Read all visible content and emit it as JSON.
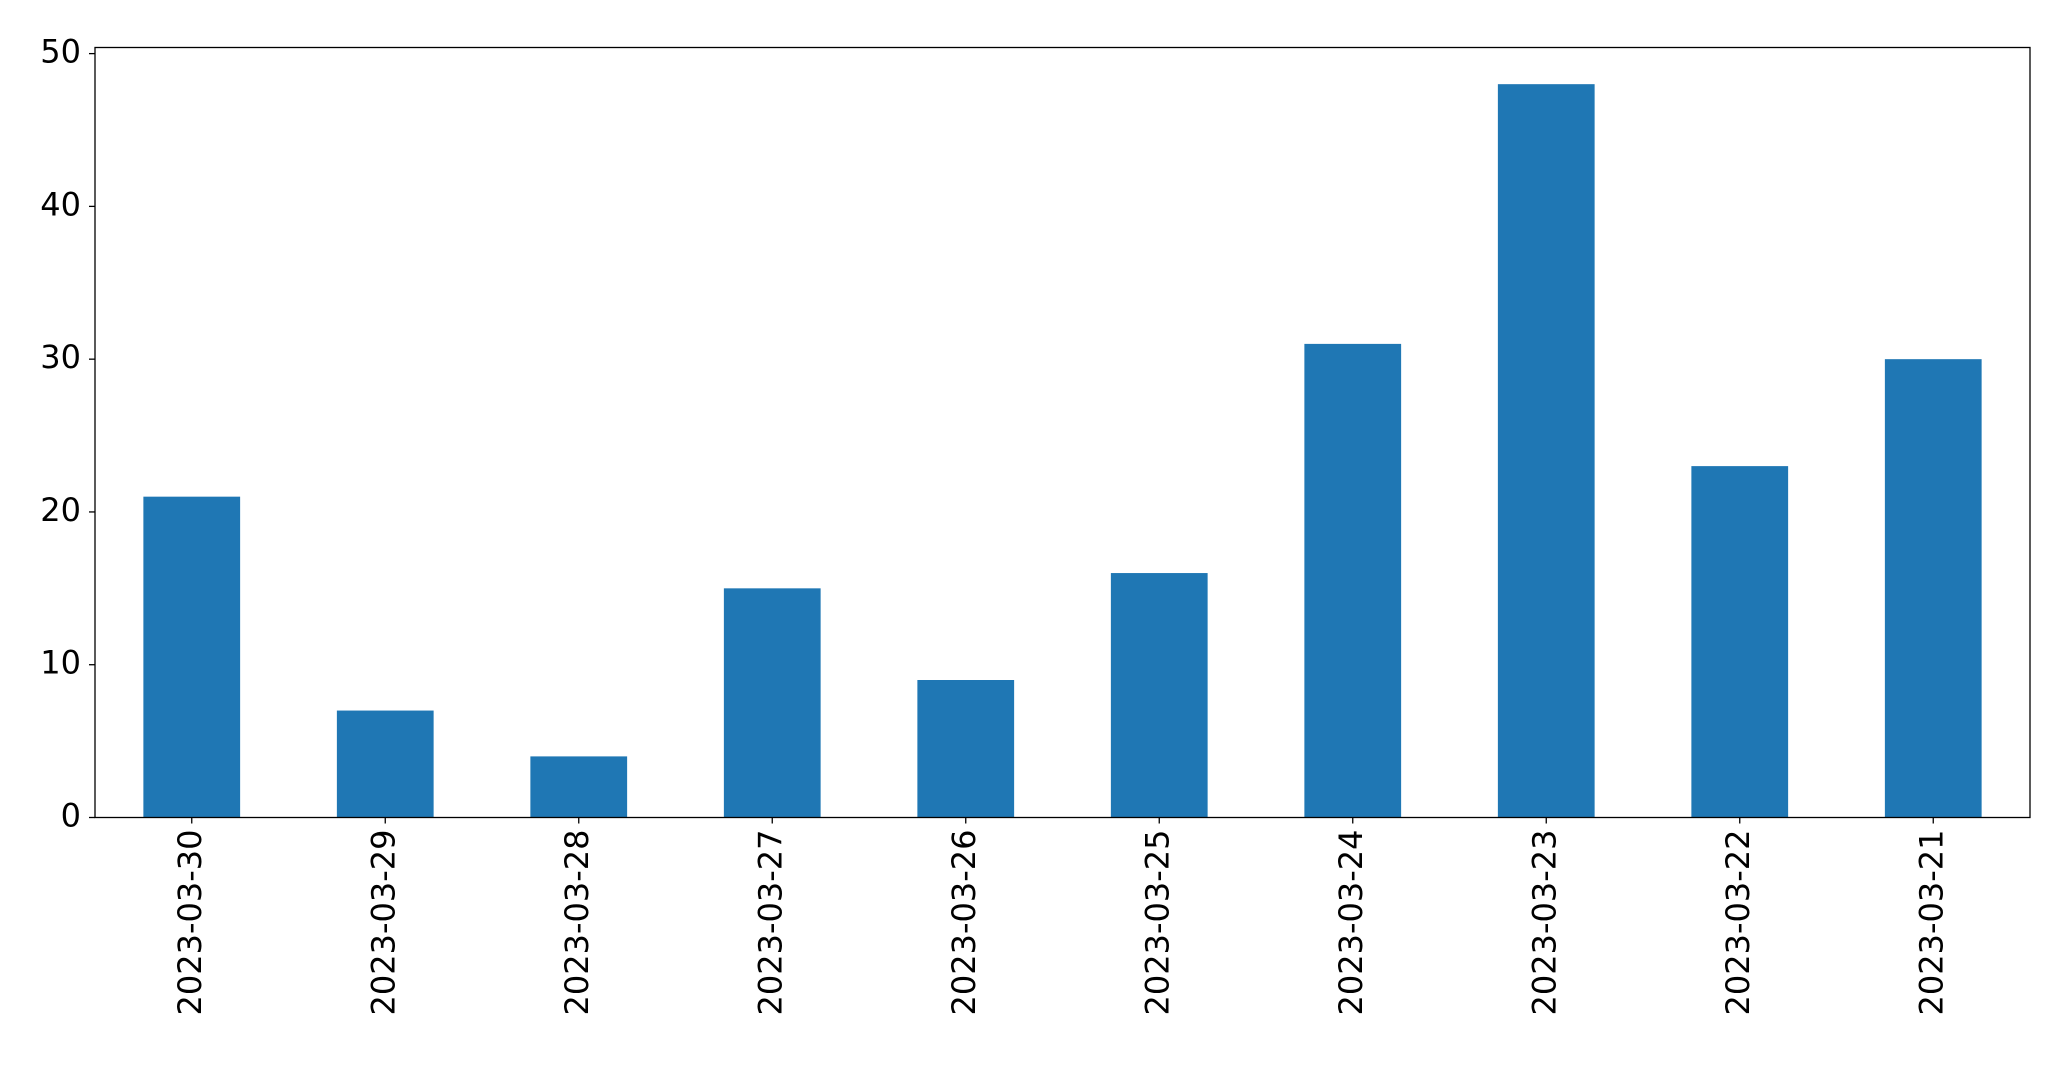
{
  "chart_data": {
    "type": "bar",
    "categories": [
      "2023-03-30",
      "2023-03-29",
      "2023-03-28",
      "2023-03-27",
      "2023-03-26",
      "2023-03-25",
      "2023-03-24",
      "2023-03-23",
      "2023-03-22",
      "2023-03-21"
    ],
    "values": [
      21,
      7,
      4,
      15,
      9,
      16,
      31,
      48,
      23,
      30
    ],
    "color": "#1f77b4",
    "ylim": [
      0,
      50.4
    ],
    "yticks": [
      0,
      10,
      20,
      30,
      40,
      50
    ],
    "grid": false
  }
}
